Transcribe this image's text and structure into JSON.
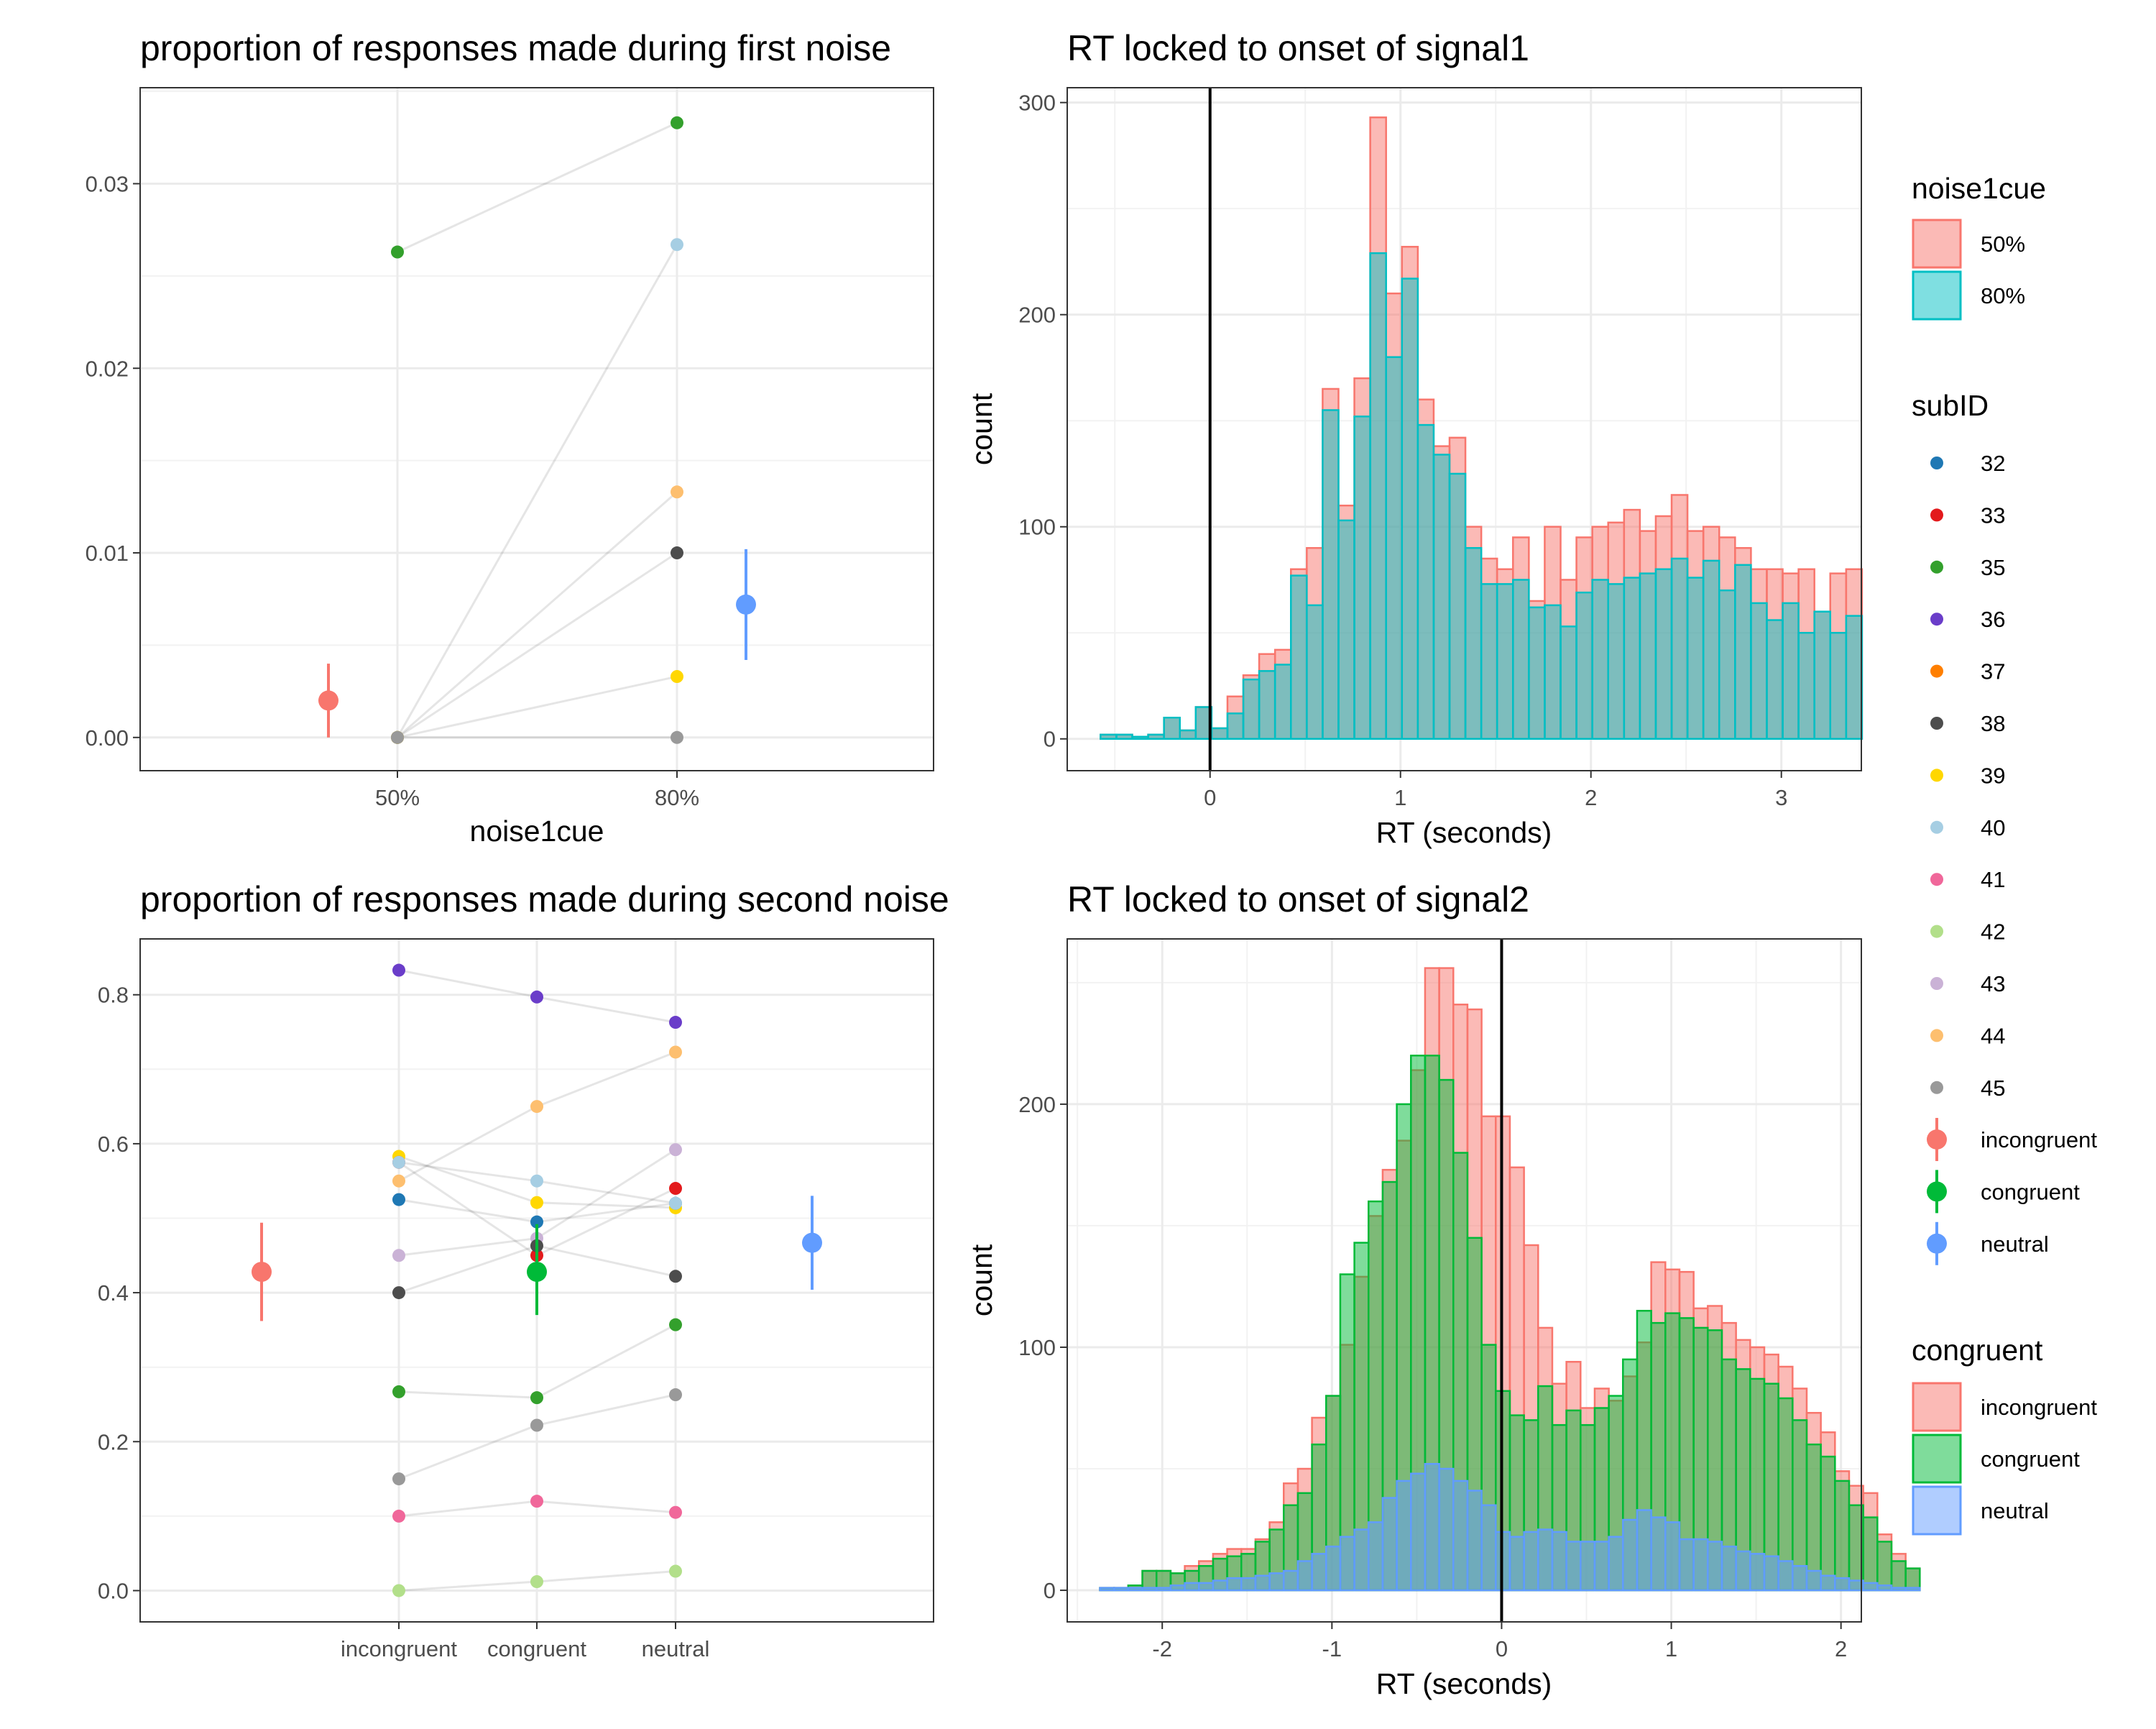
{
  "chart_data": [
    {
      "type": "scatter",
      "title": "proportion of responses made during first noise",
      "xlabel": "noise1cue",
      "ylabel": "",
      "categories": [
        "50%",
        "80%"
      ],
      "ylim": [
        -0.0018,
        0.0352
      ],
      "yticks": [
        0.0,
        0.01,
        0.02,
        0.03
      ],
      "ytick_labels": [
        "0.00",
        "0.01",
        "0.02",
        "0.03"
      ],
      "subjects": [
        {
          "id": "35",
          "values": [
            0.0263,
            0.0333
          ]
        },
        {
          "id": "40",
          "values": [
            0.0,
            0.0267
          ]
        },
        {
          "id": "44",
          "values": [
            0.0,
            0.0133
          ]
        },
        {
          "id": "38",
          "values": [
            0.0,
            0.01
          ]
        },
        {
          "id": "39",
          "values": [
            0.0,
            0.0033
          ]
        },
        {
          "id": "45",
          "values": [
            0.0,
            0.0
          ]
        }
      ],
      "summary": [
        {
          "cue": "50%",
          "mean": 0.002,
          "low": 0.0,
          "high": 0.004,
          "color": "#F8766D"
        },
        {
          "cue": "80%",
          "mean": 0.0072,
          "low": 0.0042,
          "high": 0.0102,
          "color": "#619CFF"
        }
      ]
    },
    {
      "type": "bar",
      "title": "RT locked to onset of signal1",
      "xlabel": "RT (seconds)",
      "ylabel": "count",
      "xlim": [
        -0.75,
        3.42
      ],
      "ylim": [
        -15,
        307
      ],
      "xticks": [
        0,
        1,
        2,
        3
      ],
      "yticks": [
        0,
        100,
        200,
        300
      ],
      "bin_start": -0.575,
      "bin_width": 0.0833,
      "series": [
        {
          "name": "50%",
          "values": [
            2,
            2,
            1,
            2,
            10,
            4,
            15,
            5,
            20,
            30,
            40,
            42,
            80,
            90,
            165,
            110,
            170,
            293,
            210,
            232,
            160,
            138,
            142,
            100,
            85,
            80,
            95,
            65,
            100,
            75,
            95,
            100,
            102,
            108,
            98,
            105,
            115,
            98,
            100,
            95,
            90,
            80,
            80,
            78,
            80,
            60,
            78,
            80
          ]
        },
        {
          "name": "80%",
          "values": [
            2,
            2,
            1,
            2,
            10,
            4,
            15,
            5,
            12,
            28,
            32,
            35,
            77,
            63,
            155,
            103,
            152,
            229,
            180,
            217,
            148,
            134,
            125,
            90,
            73,
            73,
            75,
            62,
            63,
            53,
            69,
            75,
            73,
            76,
            78,
            80,
            85,
            76,
            84,
            70,
            82,
            64,
            56,
            64,
            50,
            60,
            50,
            58
          ]
        }
      ]
    },
    {
      "type": "scatter",
      "title": "proportion of responses made during second noise",
      "xlabel": "",
      "ylabel": "",
      "categories": [
        "incongruent",
        "congruent",
        "neutral"
      ],
      "ylim": [
        -0.042,
        0.875
      ],
      "yticks": [
        0.0,
        0.2,
        0.4,
        0.6,
        0.8
      ],
      "ytick_labels": [
        "0.0",
        "0.2",
        "0.4",
        "0.6",
        "0.8"
      ],
      "subjects": [
        {
          "id": "36",
          "values": [
            0.833,
            0.797,
            0.763
          ]
        },
        {
          "id": "44",
          "values": [
            0.55,
            0.65,
            0.723
          ]
        },
        {
          "id": "39",
          "values": [
            0.583,
            0.521,
            0.514
          ]
        },
        {
          "id": "33",
          "values": [
            0.575,
            0.45,
            0.54
          ]
        },
        {
          "id": "43",
          "values": [
            0.45,
            0.473,
            0.592
          ]
        },
        {
          "id": "32",
          "values": [
            0.525,
            0.495,
            0.52
          ]
        },
        {
          "id": "40",
          "values": [
            0.575,
            0.55,
            0.52
          ]
        },
        {
          "id": "38",
          "values": [
            0.4,
            0.463,
            0.422
          ]
        },
        {
          "id": "35",
          "values": [
            0.267,
            0.259,
            0.357
          ]
        },
        {
          "id": "45",
          "values": [
            0.15,
            0.222,
            0.263
          ]
        },
        {
          "id": "41",
          "values": [
            0.1,
            0.12,
            0.105
          ]
        },
        {
          "id": "42",
          "values": [
            0.0,
            0.012,
            0.026
          ]
        }
      ],
      "summary": [
        {
          "cond": "incongruent",
          "mean": 0.428,
          "low": 0.362,
          "high": 0.494,
          "color": "#F8766D"
        },
        {
          "cond": "congruent",
          "mean": 0.428,
          "low": 0.37,
          "high": 0.492,
          "color": "#00BA38"
        },
        {
          "cond": "neutral",
          "mean": 0.467,
          "low": 0.404,
          "high": 0.53,
          "color": "#619CFF"
        }
      ]
    },
    {
      "type": "bar",
      "title": "RT locked to onset of signal2",
      "xlabel": "RT (seconds)",
      "ylabel": "count",
      "xlim": [
        -2.56,
        2.12
      ],
      "ylim": [
        -13,
        268
      ],
      "xticks": [
        -2,
        -1,
        0,
        1,
        2
      ],
      "yticks": [
        0,
        100,
        200
      ],
      "bin_start": -2.367,
      "bin_width": 0.0833,
      "series": [
        {
          "name": "incongruent",
          "values": [
            1,
            1,
            2,
            8,
            8,
            7,
            10,
            12,
            15,
            17,
            17,
            21,
            28,
            44,
            50,
            71,
            80,
            101,
            129,
            154,
            173,
            185,
            214,
            256,
            256,
            241,
            239,
            195,
            195,
            174,
            142,
            108,
            85,
            94,
            75,
            83,
            78,
            88,
            102,
            135,
            132,
            131,
            116,
            117,
            110,
            103,
            100,
            97,
            92,
            83,
            73,
            65,
            49,
            43,
            40,
            23,
            15,
            9
          ]
        },
        {
          "name": "congruent",
          "values": [
            1,
            1,
            2,
            8,
            8,
            7,
            8,
            10,
            13,
            14,
            15,
            20,
            25,
            35,
            40,
            60,
            80,
            130,
            143,
            160,
            168,
            200,
            220,
            220,
            210,
            180,
            145,
            101,
            82,
            72,
            70,
            84,
            68,
            74,
            68,
            75,
            80,
            95,
            115,
            110,
            114,
            112,
            108,
            107,
            95,
            91,
            87,
            85,
            79,
            70,
            60,
            55,
            45,
            35,
            30,
            20,
            12,
            9
          ]
        },
        {
          "name": "neutral",
          "values": [
            1,
            1,
            1,
            1,
            1,
            2,
            3,
            3,
            4,
            5,
            5,
            6,
            7,
            8,
            12,
            15,
            18,
            22,
            25,
            28,
            38,
            45,
            48,
            52,
            50,
            45,
            41,
            35,
            24,
            22,
            24,
            25,
            24,
            20,
            20,
            20,
            22,
            29,
            33,
            30,
            28,
            21,
            21,
            20,
            18,
            16,
            15,
            14,
            12,
            10,
            8,
            6,
            5,
            4,
            3,
            2,
            1,
            1
          ]
        }
      ]
    }
  ],
  "legends": {
    "noise1cue": {
      "title": "noise1cue",
      "items": [
        {
          "label": "50%",
          "fill": "#F8766D",
          "stroke": "#F8766D"
        },
        {
          "label": "80%",
          "fill": "#00BFC4",
          "stroke": "#00BFC4"
        }
      ]
    },
    "subID": {
      "title": "subID",
      "items": [
        {
          "label": "32",
          "color": "#1F78B4"
        },
        {
          "label": "33",
          "color": "#E31A1C"
        },
        {
          "label": "35",
          "color": "#33A02C"
        },
        {
          "label": "36",
          "color": "#6A3DC9"
        },
        {
          "label": "37",
          "color": "#FF7F00"
        },
        {
          "label": "38",
          "color": "#4D4D4D"
        },
        {
          "label": "39",
          "color": "#FFD700"
        },
        {
          "label": "40",
          "color": "#A6CEE3"
        },
        {
          "label": "41",
          "color": "#F0679A"
        },
        {
          "label": "42",
          "color": "#B2DF8A"
        },
        {
          "label": "43",
          "color": "#CAB2D6"
        },
        {
          "label": "44",
          "color": "#FDBF6F"
        },
        {
          "label": "45",
          "color": "#999999"
        }
      ],
      "summary_items": [
        {
          "label": "incongruent",
          "color": "#F8766D"
        },
        {
          "label": "congruent",
          "color": "#00BA38"
        },
        {
          "label": "neutral",
          "color": "#619CFF"
        }
      ]
    },
    "congruent": {
      "title": "congruent",
      "items": [
        {
          "label": "incongruent",
          "fill": "#F8766D",
          "stroke": "#F8766D"
        },
        {
          "label": "congruent",
          "fill": "#00BA38",
          "stroke": "#00BA38"
        },
        {
          "label": "neutral",
          "fill": "#619CFF",
          "stroke": "#619CFF"
        }
      ]
    }
  }
}
